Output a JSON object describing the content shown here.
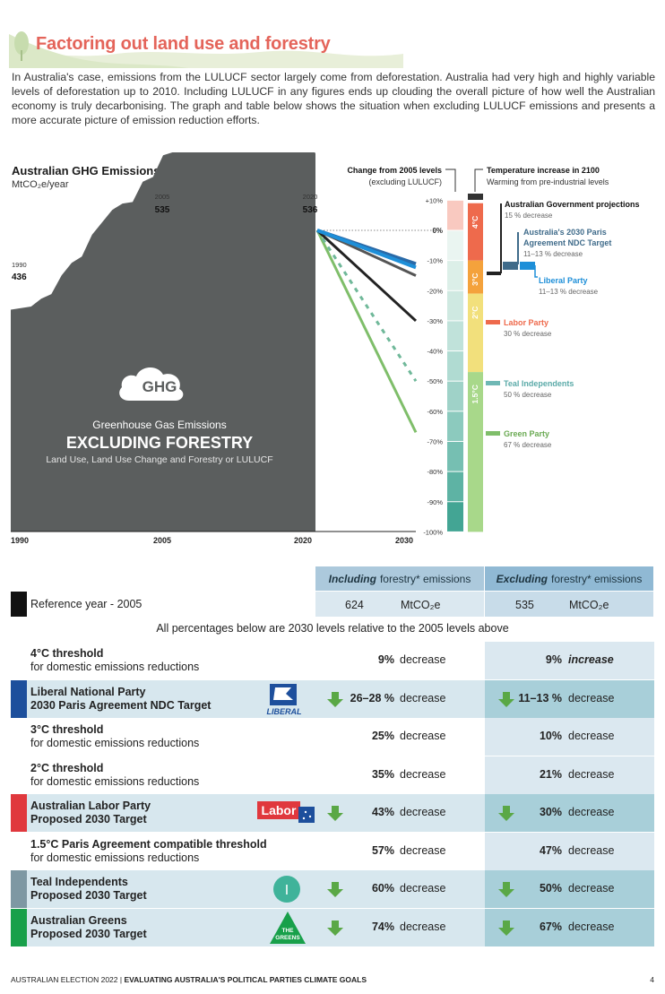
{
  "page": {
    "title": "Factoring out land use and forestry",
    "intro": "In Australia's case, emissions from the LULUCF sector largely come from deforestation. Australia had very high and highly variable levels of deforestation up to 2010. Including LULUCF in any figures ends up clouding the overall picture of how well the Australian economy is truly decarbonising. The graph and table below shows the situation when excluding LULUCF emissions and presents a more accurate picture of emission reduction efforts."
  },
  "chart_data": {
    "type": "area",
    "title": "Australian GHG Emissions",
    "ylabel": "MtCO₂e/year",
    "x": [
      1990,
      1991,
      1992,
      1993,
      1994,
      1995,
      1996,
      1997,
      1998,
      1999,
      2000,
      2001,
      2002,
      2003,
      2004,
      2005,
      2006,
      2007,
      2008,
      2009,
      2010,
      2011,
      2012,
      2013,
      2014,
      2015,
      2016,
      2017,
      2018,
      2019,
      2020
    ],
    "values": [
      436,
      437,
      438,
      443,
      446,
      458,
      466,
      470,
      484,
      492,
      500,
      504,
      505,
      518,
      521,
      535,
      537,
      547,
      550,
      552,
      549,
      548,
      552,
      545,
      539,
      545,
      553,
      559,
      558,
      549,
      536
    ],
    "point_labels": [
      {
        "year": "1990",
        "value": "436"
      },
      {
        "year": "2005",
        "value": "535"
      },
      {
        "year": "2020",
        "value": "536"
      }
    ],
    "xticks": [
      "1990",
      "2005",
      "2020",
      "2030"
    ],
    "area_label": {
      "icon_text": "GHG",
      "line1": "Greenhouse Gas Emissions",
      "line2": "EXCLUDING FORESTRY",
      "line3": "Land Use, Land Use Change and Forestry or LULUCF"
    },
    "change_axis": {
      "title": "Change from 2005 levels",
      "subtitle": "(excluding LULUCF)",
      "ticks": [
        "+10%",
        "0%",
        "-10%",
        "-20%",
        "-30%",
        "-40%",
        "-50%",
        "-60%",
        "-70%",
        "-80%",
        "-90%",
        "-100%"
      ]
    },
    "projections": [
      {
        "name": "Australian Government projections",
        "sub": "15 % decrease",
        "change_2030": -15,
        "color": "#555555",
        "dashed": false
      },
      {
        "name": "Australia's 2030 Paris Agreement NDC Target",
        "sub": "11–13 % decrease",
        "change_2030": -12,
        "color": "#2a6aa8",
        "dashed": false
      },
      {
        "name": "Liberal Party",
        "sub": "11–13 % decrease",
        "change_2030": -12,
        "color": "#1e8fd8",
        "dashed": false
      },
      {
        "name": "Labor Party",
        "sub": "30 % decrease",
        "change_2030": -30,
        "color": "#222222",
        "dashed": false
      },
      {
        "name": "Teal Independents",
        "sub": "50 % decrease",
        "change_2030": -50,
        "color": "#6fb899",
        "dashed": true
      },
      {
        "name": "Green Party",
        "sub": "67 % decrease",
        "change_2030": -67,
        "color": "#7fbe6a",
        "dashed": false
      }
    ],
    "temperature_bar": {
      "title": "Temperature increase in 2100",
      "subtitle": "Warming from pre-industrial levels",
      "segments": [
        {
          "label": "4°C",
          "from": 9,
          "to": -10,
          "color": "#ee6a4c"
        },
        {
          "label": "3°C",
          "from": -10,
          "to": -21,
          "color": "#f4a23c"
        },
        {
          "label": "2°C",
          "from": -21,
          "to": -47,
          "color": "#f2e07c"
        },
        {
          "label": "1.5°C",
          "from": -47,
          "to": -100,
          "color": "#a8d88a"
        }
      ]
    }
  },
  "table": {
    "col_incl_strong": "Including",
    "col_incl_rest": "forestry* emissions",
    "col_excl_strong": "Excluding",
    "col_excl_rest": "forestry* emissions",
    "ref_label": "Reference year - 2005",
    "ref_incl_value": "624",
    "ref_excl_value": "535",
    "ref_unit": "MtCO₂e",
    "note": "All percentages below are 2030 levels relative to the 2005 levels above",
    "rows": [
      {
        "line1": "4°C threshold",
        "line2": "for domestic emissions reductions",
        "incl": "9%",
        "incl_word": "decrease",
        "excl": "9%",
        "excl_word": "increase"
      },
      {
        "line1": "Liberal National Party",
        "line2": "2030 Paris Agreement NDC Target",
        "incl": "26–28 %",
        "incl_word": "decrease",
        "excl": "11–13 %",
        "excl_word": "decrease",
        "logo": "LIBERAL"
      },
      {
        "line1": "3°C threshold",
        "line2": "for domestic emissions reductions",
        "incl": "25%",
        "incl_word": "decrease",
        "excl": "10%",
        "excl_word": "decrease"
      },
      {
        "line1": "2°C threshold",
        "line2": "for domestic emissions reductions",
        "incl": "35%",
        "incl_word": "decrease",
        "excl": "21%",
        "excl_word": "decrease"
      },
      {
        "line1": "Australian Labor Party",
        "line2": "Proposed 2030 Target",
        "incl": "43%",
        "incl_word": "decrease",
        "excl": "30%",
        "excl_word": "decrease",
        "logo": "Labor"
      },
      {
        "line1": "1.5°C Paris Agreement compatible threshold",
        "line2": "for domestic emissions reductions",
        "incl": "57%",
        "incl_word": "decrease",
        "excl": "47%",
        "excl_word": "decrease"
      },
      {
        "line1": "Teal Independents",
        "line2": "Proposed 2030 Target",
        "incl": "60%",
        "incl_word": "decrease",
        "excl": "50%",
        "excl_word": "decrease",
        "logo": "I"
      },
      {
        "line1": "Australian Greens",
        "line2": "Proposed 2030 Target",
        "incl": "74%",
        "incl_word": "decrease",
        "excl": "67%",
        "excl_word": "decrease",
        "logo": "THE GREENS"
      }
    ]
  },
  "footer": {
    "left": "AUSTRALIAN ELECTION 2022",
    "right": "EVALUATING AUSTRALIA'S POLITICAL PARTIES CLIMATE GOALS",
    "page": "4"
  },
  "colors": {
    "title": "#e4645a",
    "area": "#5b5e5e",
    "liberal": "#1d4f9c",
    "labor": "#e0383d",
    "teal": "#7e98a3",
    "greens": "#18a04a",
    "arrow": "#5aa846"
  }
}
